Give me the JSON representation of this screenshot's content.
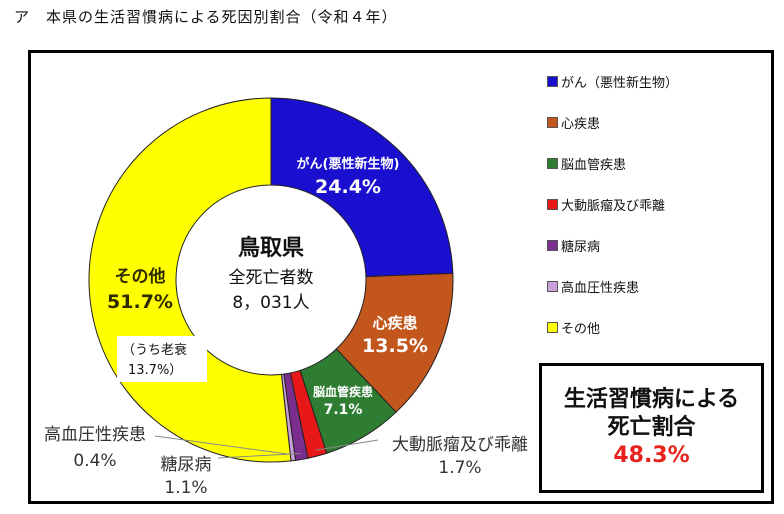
{
  "heading": "ア　本県の生活習慣病による死因別割合（令和４年）",
  "center": {
    "line1": "鳥取県",
    "line2": "全死亡者数",
    "line3": "8，031人"
  },
  "summary": {
    "line1": "生活習慣病による",
    "line2": "死亡割合",
    "value": "48.3%"
  },
  "subnote": {
    "line1": "（うち老衰",
    "line2": "13.7%）"
  },
  "chart_data": {
    "type": "pie",
    "title": "",
    "donut": true,
    "legend_position": "right",
    "unit": "%",
    "slices": [
      {
        "name": "がん（悪性新生物）",
        "legend": "がん（悪性新生物）",
        "label": "がん(悪性新生物)",
        "value": 24.4,
        "value_label": "24.4%",
        "color": "#1a0fcf"
      },
      {
        "name": "心疾患",
        "legend": "心疾患",
        "label": "心疾患",
        "value": 13.5,
        "value_label": "13.5%",
        "color": "#c2561c"
      },
      {
        "name": "脳血管疾患",
        "legend": "脳血管疾患",
        "label": "脳血管疾患",
        "value": 7.1,
        "value_label": "7.1%",
        "color": "#2e7d32"
      },
      {
        "name": "大動脈瘤及び乖離",
        "legend": "大動脈瘤及び乖離",
        "label": "大動脈瘤及び乖離",
        "value": 1.7,
        "value_label": "1.7%",
        "color": "#e81818"
      },
      {
        "name": "糖尿病",
        "legend": "糖尿病",
        "label": "糖尿病",
        "value": 1.1,
        "value_label": "1.1%",
        "color": "#7b2e8e"
      },
      {
        "name": "高血圧性疾患",
        "legend": "高血圧性疾患",
        "label": "高血圧性疾患",
        "value": 0.4,
        "value_label": "0.4%",
        "color": "#c9a0d8"
      },
      {
        "name": "その他",
        "legend": "その他",
        "label": "その他",
        "value": 51.7,
        "value_label": "51.7%",
        "color": "#ffff00"
      }
    ]
  }
}
